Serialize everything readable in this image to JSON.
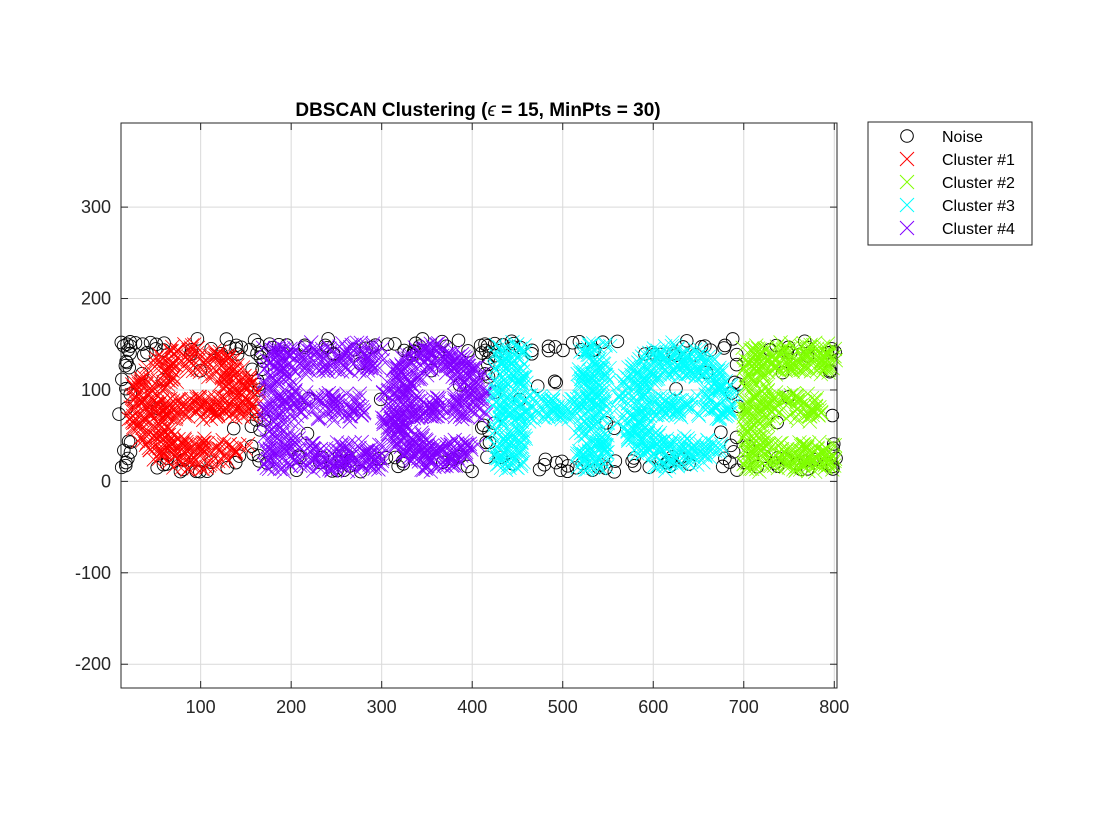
{
  "chart_data": {
    "type": "scatter",
    "title_prefix": "DBSCAN Clustering (",
    "title_symbol": "ϵ",
    "title_suffix": " = 15, MinPts = 30)",
    "xlim": [
      12,
      803
    ],
    "ylim": [
      -226,
      392
    ],
    "xticks": [
      100,
      200,
      300,
      400,
      500,
      600,
      700,
      800
    ],
    "yticks": [
      -200,
      -100,
      0,
      100,
      200,
      300
    ],
    "grid": true,
    "legend_position": "outside-top-right",
    "series": [
      {
        "name": "Noise",
        "marker": "circle",
        "color": "#000000"
      },
      {
        "name": "Cluster #1",
        "marker": "x",
        "color": "#ff0000"
      },
      {
        "name": "Cluster #2",
        "marker": "x",
        "color": "#80ff00"
      },
      {
        "name": "Cluster #3",
        "marker": "x",
        "color": "#00ffff"
      },
      {
        "name": "Cluster #4",
        "marker": "x",
        "color": "#8000ff"
      }
    ],
    "clusters": [
      {
        "series": 1,
        "letter": "e",
        "x_range": [
          20,
          165
        ],
        "y_range": [
          12,
          150
        ]
      },
      {
        "series": 4,
        "letter": "E",
        "x_range": [
          170,
          300
        ],
        "y_range": [
          12,
          150
        ]
      },
      {
        "series": 4,
        "letter": "e",
        "x_range": [
          300,
          420
        ],
        "y_range": [
          12,
          150
        ]
      },
      {
        "series": 3,
        "letter": "H",
        "x_range": [
          425,
          550
        ],
        "y_range": [
          12,
          150
        ]
      },
      {
        "series": 3,
        "letter": "e",
        "x_range": [
          560,
          690
        ],
        "y_range": [
          12,
          150
        ]
      },
      {
        "series": 2,
        "letter": "E",
        "x_range": [
          700,
          800
        ],
        "y_range": [
          12,
          150
        ]
      }
    ],
    "noise_band": {
      "x_range": [
        12,
        803
      ],
      "y_range": [
        10,
        157
      ]
    }
  }
}
